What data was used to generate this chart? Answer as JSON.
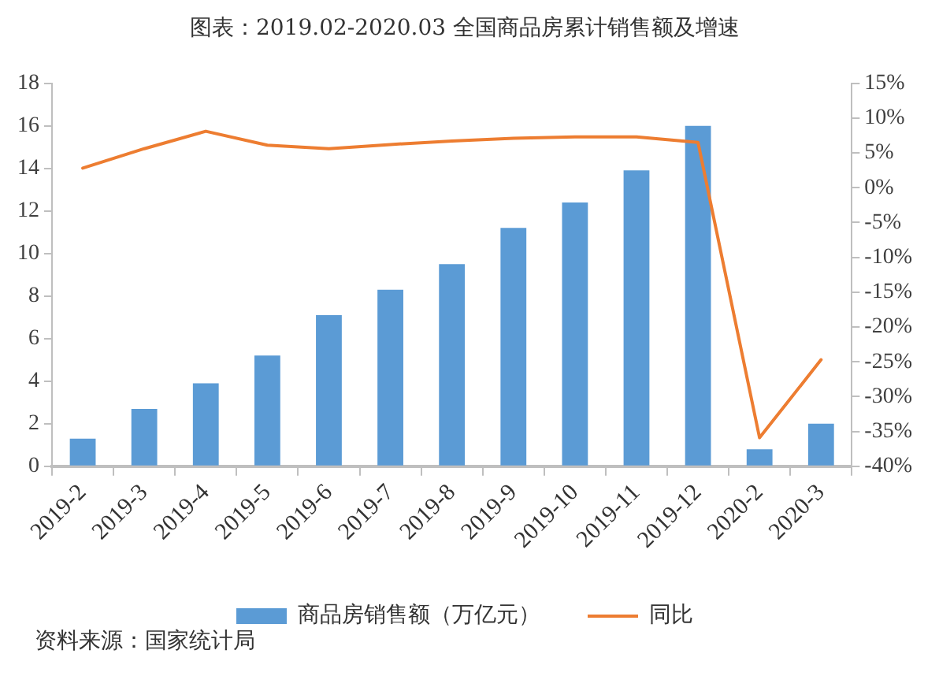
{
  "chart_data": {
    "type": "bar",
    "title": "图表：2019.02-2020.03 全国商品房累计销售额及增速",
    "categories": [
      "2019-2",
      "2019-3",
      "2019-4",
      "2019-5",
      "2019-6",
      "2019-7",
      "2019-8",
      "2019-9",
      "2019-10",
      "2019-11",
      "2019-12",
      "2020-2",
      "2020-3"
    ],
    "series": [
      {
        "name": "商品房销售额（万亿元）",
        "color": "#5b9bd5",
        "values": [
          1.3,
          2.7,
          3.9,
          5.2,
          7.1,
          8.3,
          9.5,
          11.2,
          12.4,
          13.9,
          16.0,
          0.8,
          2.0
        ]
      },
      {
        "name": "同比",
        "type": "line",
        "axis": "y2",
        "color": "#ed7d31",
        "values": [
          2.8,
          5.6,
          8.1,
          6.1,
          5.6,
          6.2,
          6.7,
          7.1,
          7.3,
          7.3,
          6.5,
          -35.9,
          -24.7
        ]
      }
    ],
    "ylim": [
      0,
      18
    ],
    "yticks": [
      0,
      2,
      4,
      6,
      8,
      10,
      12,
      14,
      16,
      18
    ],
    "y2lim": [
      -40,
      15
    ],
    "y2ticks": [
      {
        "value": -40,
        "label": "-40%"
      },
      {
        "value": -35,
        "label": "-35%"
      },
      {
        "value": -30,
        "label": "-30%"
      },
      {
        "value": -25,
        "label": "-25%"
      },
      {
        "value": -20,
        "label": "-20%"
      },
      {
        "value": -15,
        "label": "-15%"
      },
      {
        "value": -10,
        "label": "-10%"
      },
      {
        "value": -5,
        "label": "-5%"
      },
      {
        "value": 0,
        "label": "0%"
      },
      {
        "value": 5,
        "label": "5%"
      },
      {
        "value": 10,
        "label": "10%"
      },
      {
        "value": 15,
        "label": "15%"
      }
    ],
    "legend": "bottom",
    "grid": false,
    "marker": "none",
    "line_style": "solid",
    "annotations": [
      "资料来源：国家统计局"
    ]
  }
}
